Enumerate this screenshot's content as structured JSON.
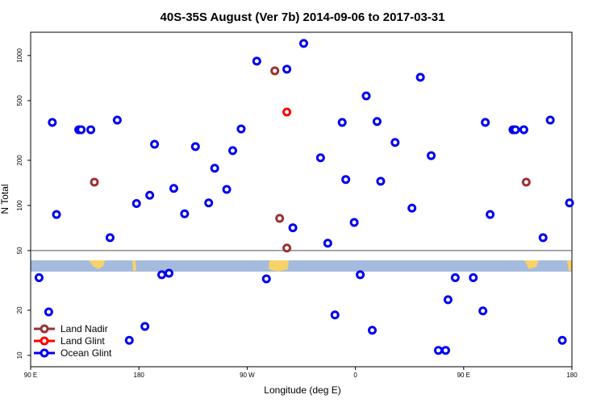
{
  "chart_data": {
    "type": "scatter",
    "title": "40S-35S August (Ver 7b)   2014-09-06 to 2017-03-31",
    "x_label": "Longitude (deg E)",
    "y_label": "N Total",
    "log_y": true,
    "xlim": [
      90,
      540
    ],
    "ylim": [
      8.4,
      1430
    ],
    "xticks": [
      {
        "value": 90,
        "label": "90 E"
      },
      180,
      {
        "value": 270,
        "label": "90 W"
      },
      {
        "value": 360,
        "label": "0"
      },
      {
        "value": 450,
        "label": "90 E"
      },
      {
        "value": 540,
        "label": "180"
      }
    ],
    "yticks": [
      10,
      20,
      50,
      100,
      200,
      500,
      1000
    ],
    "legend": "bottom-left",
    "series": [
      {
        "name": "Land Nadir",
        "color": "#993333",
        "x": [
          143,
          293,
          297,
          303,
          502
        ],
        "values": [
          143,
          790,
          82,
          52,
          143
        ]
      },
      {
        "name": "Land Glint",
        "color": "#ff0000",
        "x": [
          303
        ],
        "values": [
          420
        ]
      },
      {
        "name": "Ocean Glint",
        "color": "#0000ee",
        "x": [
          108,
          111.5,
          130,
          132,
          140,
          156,
          162,
          178,
          189,
          193,
          209,
          218,
          227,
          238,
          243,
          253,
          258,
          265,
          278,
          303,
          308,
          317,
          331,
          337,
          349,
          352,
          359,
          369,
          378,
          381,
          393,
          407,
          414,
          423,
          468,
          472,
          491,
          493,
          500,
          516,
          522,
          538,
          97,
          105,
          172,
          185,
          199,
          205,
          286,
          343,
          364,
          374,
          429,
          435,
          437,
          443,
          458,
          466,
          532
        ],
        "values": [
          358,
          87,
          320,
          320,
          320,
          61,
          371,
          103,
          117,
          256,
          130,
          88,
          247,
          104,
          177,
          128,
          232,
          324,
          917,
          811,
          71,
          1205,
          208,
          56,
          358,
          149,
          77,
          538,
          363,
          145,
          263,
          96,
          716,
          215,
          358,
          87,
          320,
          320,
          320,
          61,
          371,
          104,
          33,
          19.5,
          12.6,
          15.6,
          34.5,
          35.3,
          32.4,
          18.6,
          34.5,
          14.7,
          10.8,
          10.8,
          23.5,
          33,
          33,
          19.8,
          12.6
        ]
      }
    ]
  }
}
